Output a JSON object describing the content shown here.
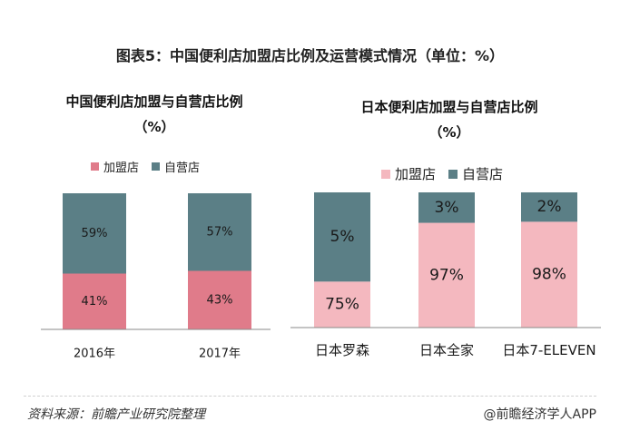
{
  "title": "图表5：中国便利店加盟店比例及运营模式情况（单位：%）",
  "footer": {
    "source": "资料来源：前瞻产业研究院整理",
    "brand": "@前瞻经济学人APP"
  },
  "colors": {
    "franchise": "#e07b8a",
    "franchise_light": "#f4b8bf",
    "self_run": "#5b7f86"
  },
  "chart_data": [
    {
      "type": "bar",
      "stacked": true,
      "title": "中国便利店加盟与自营店比例",
      "unit": "（%）",
      "categories": [
        "2016年",
        "2017年"
      ],
      "series": [
        {
          "name": "加盟店",
          "values": [
            41,
            43
          ],
          "labels": [
            "41%",
            "43%"
          ]
        },
        {
          "name": "自营店",
          "values": [
            59,
            57
          ],
          "labels": [
            "59%",
            "57%"
          ]
        }
      ],
      "ylim": [
        0,
        100
      ],
      "legend": "top"
    },
    {
      "type": "bar",
      "stacked": true,
      "title": "日本便利店加盟与自营店比例",
      "unit": "（%）",
      "categories": [
        "日本罗森",
        "日本全家",
        "日本7-ELEVEN"
      ],
      "series": [
        {
          "name": "加盟店",
          "values": [
            75,
            97,
            98
          ],
          "labels": [
            "75%",
            "97%",
            "98%"
          ]
        },
        {
          "name": "自营店",
          "values": [
            5,
            3,
            2
          ],
          "labels": [
            "5%",
            "3%",
            "2%"
          ]
        }
      ],
      "ylim": [
        0,
        100
      ],
      "legend": "top"
    }
  ]
}
